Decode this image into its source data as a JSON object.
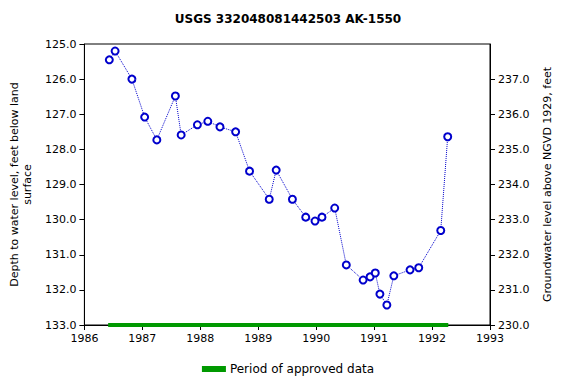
{
  "chart_data": {
    "type": "line",
    "title": "USGS 332048081442503 AK-1550",
    "x_label": "",
    "y_label": "Depth to water level, feet below land\nsurface",
    "y2_label": "Groundwater level above NGVD 1929, feet",
    "xlim": [
      1986,
      1993
    ],
    "xticks": [
      1986,
      1987,
      1988,
      1989,
      1990,
      1991,
      1992,
      1993
    ],
    "ylim": [
      133,
      125
    ],
    "yticks": [
      {
        "value": 125,
        "label": "125.0"
      },
      {
        "value": 126,
        "label": "126.0"
      },
      {
        "value": 127,
        "label": "127.0"
      },
      {
        "value": 128,
        "label": "128.0"
      },
      {
        "value": 129,
        "label": "129.0"
      },
      {
        "value": 130,
        "label": "130.0"
      },
      {
        "value": 131,
        "label": "131.0"
      },
      {
        "value": 132,
        "label": "132.0"
      },
      {
        "value": 133,
        "label": "133.0"
      }
    ],
    "y2lim": [
      230,
      238
    ],
    "y2ticks": [
      {
        "value": 230,
        "label": "230.0"
      },
      {
        "value": 231,
        "label": "231.0"
      },
      {
        "value": 232,
        "label": "232.0"
      },
      {
        "value": 233,
        "label": "233.0"
      },
      {
        "value": 234,
        "label": "234.0"
      },
      {
        "value": 235,
        "label": "235.0"
      },
      {
        "value": 236,
        "label": "236.0"
      },
      {
        "value": 237,
        "label": "237.0"
      }
    ],
    "grid": false,
    "legend": "bottom",
    "series": [
      {
        "color": "#0000cc",
        "marker": "circle",
        "line_style": "dotted",
        "x": [
          1986.43,
          1986.53,
          1986.82,
          1987.04,
          1987.25,
          1987.57,
          1987.67,
          1987.95,
          1988.13,
          1988.34,
          1988.61,
          1988.85,
          1989.19,
          1989.31,
          1989.59,
          1989.82,
          1989.98,
          1990.1,
          1990.32,
          1990.52,
          1990.81,
          1990.93,
          1991.02,
          1991.1,
          1991.22,
          1991.34,
          1991.62,
          1991.77,
          1992.15,
          1992.27
        ],
        "values": [
          125.45,
          125.2,
          126.0,
          127.08,
          127.73,
          126.48,
          127.59,
          127.3,
          127.2,
          127.36,
          127.5,
          128.62,
          129.42,
          128.59,
          129.42,
          129.93,
          130.04,
          129.93,
          129.67,
          131.29,
          131.72,
          131.63,
          131.52,
          132.12,
          132.43,
          131.6,
          131.43,
          131.37,
          130.31,
          127.64
        ]
      },
      {
        "name": "Period of approved data",
        "color": "#009900",
        "line_style": "solid",
        "x": [
          1986.41,
          1992.28
        ],
        "values": [
          133,
          133
        ]
      }
    ]
  }
}
